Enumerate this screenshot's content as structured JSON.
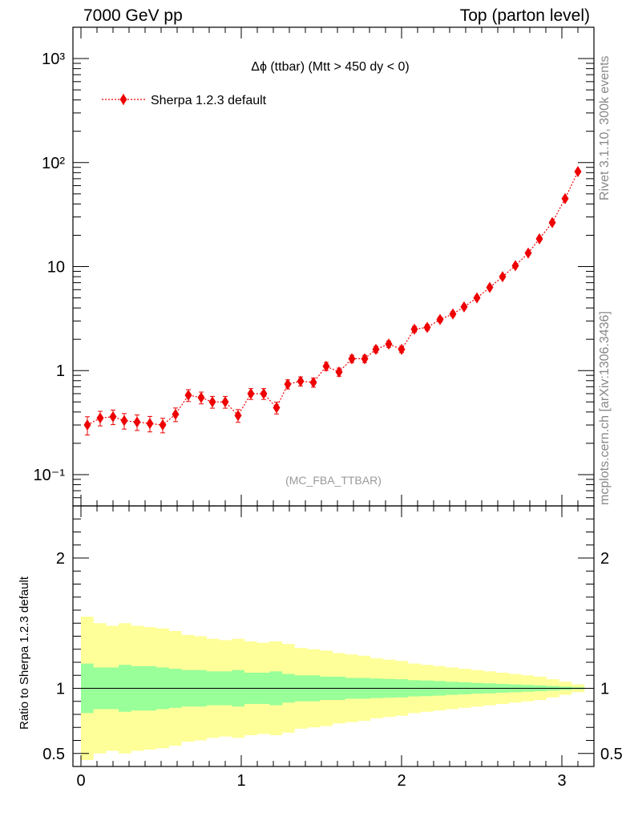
{
  "header": {
    "left": "7000 GeV pp",
    "right": "Top (parton level)"
  },
  "side_labels": {
    "rivet": "Rivet 3.1.10,  300k events",
    "mcplots": "mcplots.cern.ch [arXiv:1306.3436]"
  },
  "chart_data": [
    {
      "type": "scatter",
      "title": "Δϕ (ttbar) (Mtt > 450 dy < 0)",
      "watermark": "(MC_FBA_TTBAR)",
      "yscale": "log",
      "ylim": [
        0.05,
        2000
      ],
      "xlim": [
        -0.05,
        3.2
      ],
      "ytick_labels": [
        "10⁻¹",
        "1",
        "10",
        "10²",
        "10³"
      ],
      "legend": "top-left",
      "colors": {
        "series": "#ee0000"
      },
      "series": [
        {
          "name": "Sherpa 1.2.3 default",
          "x": [
            0.04,
            0.12,
            0.2,
            0.27,
            0.35,
            0.43,
            0.51,
            0.59,
            0.67,
            0.75,
            0.82,
            0.9,
            0.98,
            1.06,
            1.14,
            1.22,
            1.29,
            1.37,
            1.45,
            1.53,
            1.61,
            1.69,
            1.77,
            1.84,
            1.92,
            2.0,
            2.08,
            2.16,
            2.24,
            2.32,
            2.39,
            2.47,
            2.55,
            2.63,
            2.71,
            2.79,
            2.86,
            2.94,
            3.02,
            3.1
          ],
          "y": [
            0.3,
            0.35,
            0.36,
            0.33,
            0.32,
            0.31,
            0.3,
            0.38,
            0.58,
            0.55,
            0.5,
            0.5,
            0.37,
            0.6,
            0.6,
            0.44,
            0.74,
            0.79,
            0.77,
            1.1,
            0.97,
            1.3,
            1.3,
            1.6,
            1.8,
            1.6,
            2.5,
            2.6,
            3.1,
            3.5,
            4.1,
            5.0,
            6.3,
            8.0,
            10.2,
            13.5,
            18.5,
            26.5,
            45.0,
            82.0
          ],
          "rel_err": [
            0.2,
            0.16,
            0.16,
            0.17,
            0.17,
            0.17,
            0.16,
            0.15,
            0.13,
            0.13,
            0.13,
            0.13,
            0.14,
            0.12,
            0.12,
            0.13,
            0.1,
            0.1,
            0.1,
            0.09,
            0.09,
            0.08,
            0.08,
            0.07,
            0.07,
            0.07,
            0.06,
            0.06,
            0.055,
            0.05,
            0.045,
            0.04,
            0.037,
            0.033,
            0.03,
            0.026,
            0.022,
            0.018,
            0.014,
            0.01
          ]
        }
      ]
    },
    {
      "type": "area",
      "ylabel": "Ratio to Sherpa 1.2.3 default",
      "ylim": [
        0.4,
        2.4
      ],
      "xlim": [
        -0.05,
        3.2
      ],
      "xtick_labels": [
        "0",
        "1",
        "2",
        "3"
      ],
      "ytick_labels": [
        "0.5",
        "1",
        "2"
      ],
      "reference_line": 1,
      "colors": {
        "inner": "#99ff99",
        "outer": "#ffff99",
        "line": "#000000"
      },
      "bin_edges": [
        0.0,
        0.0785,
        0.157,
        0.2355,
        0.314,
        0.3925,
        0.471,
        0.5495,
        0.628,
        0.7065,
        0.785,
        0.8635,
        0.942,
        1.0205,
        1.099,
        1.1775,
        1.256,
        1.3345,
        1.413,
        1.4915,
        1.57,
        1.6485,
        1.727,
        1.8055,
        1.884,
        1.9625,
        2.041,
        2.1195,
        2.198,
        2.2765,
        2.355,
        2.4335,
        2.512,
        2.5905,
        2.669,
        2.7475,
        2.826,
        2.9045,
        2.983,
        3.0615,
        3.1416
      ],
      "inner_band": [
        0.19,
        0.16,
        0.16,
        0.18,
        0.17,
        0.17,
        0.16,
        0.15,
        0.14,
        0.14,
        0.13,
        0.13,
        0.14,
        0.12,
        0.12,
        0.13,
        0.11,
        0.1,
        0.1,
        0.09,
        0.09,
        0.08,
        0.08,
        0.075,
        0.072,
        0.07,
        0.062,
        0.06,
        0.056,
        0.05,
        0.046,
        0.042,
        0.038,
        0.034,
        0.03,
        0.026,
        0.022,
        0.018,
        0.013,
        0.008
      ],
      "outer_band": [
        0.55,
        0.5,
        0.48,
        0.5,
        0.48,
        0.47,
        0.46,
        0.44,
        0.41,
        0.4,
        0.38,
        0.37,
        0.38,
        0.36,
        0.35,
        0.36,
        0.34,
        0.31,
        0.3,
        0.29,
        0.27,
        0.26,
        0.25,
        0.23,
        0.22,
        0.21,
        0.19,
        0.18,
        0.17,
        0.16,
        0.15,
        0.14,
        0.13,
        0.12,
        0.11,
        0.1,
        0.09,
        0.07,
        0.05,
        0.03
      ]
    }
  ]
}
